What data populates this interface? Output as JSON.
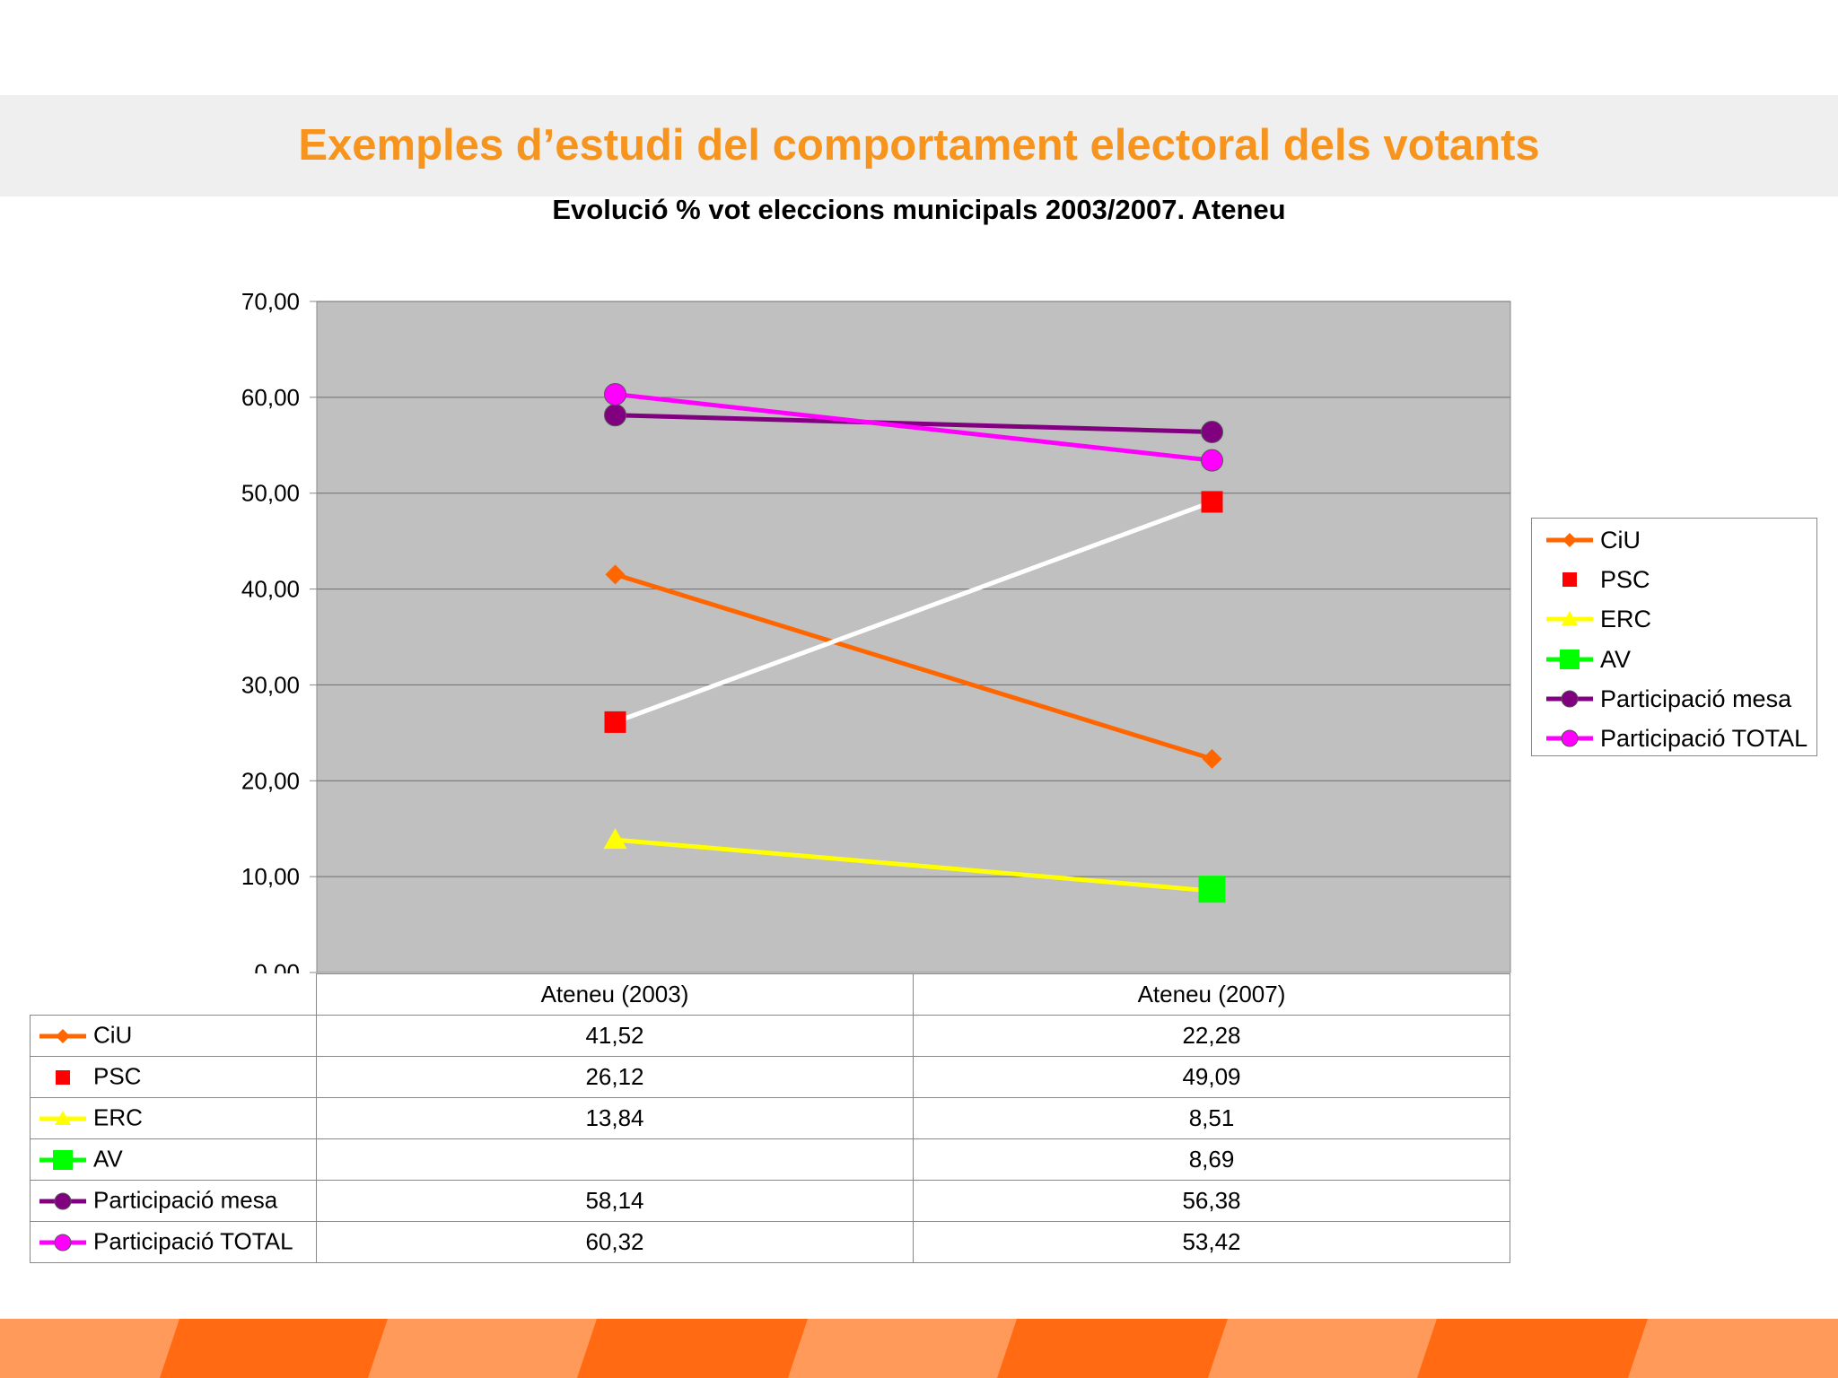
{
  "slide": {
    "title": "Exemples d’estudi del comportament electoral dels votants"
  },
  "chart_data": {
    "type": "line",
    "title": "Evolució % vot eleccions municipals 2003/2007. Ateneu",
    "categories": [
      "Ateneu (2003)",
      "Ateneu (2007)"
    ],
    "ylim": [
      0,
      70
    ],
    "yticks": [
      "0,00",
      "10,00",
      "20,00",
      "30,00",
      "40,00",
      "50,00",
      "60,00",
      "70,00"
    ],
    "grid": true,
    "plot_background": "#c0c0c0",
    "legend_position": "right",
    "series": [
      {
        "name": "CiU",
        "values": [
          41.52,
          22.28
        ],
        "labels": [
          "41,52",
          "22,28"
        ],
        "color": "#ff6600",
        "line_color": "#ff6600",
        "marker": "diamond"
      },
      {
        "name": "PSC",
        "values": [
          26.12,
          49.09
        ],
        "labels": [
          "26,12",
          "49,09"
        ],
        "color": "#ff0000",
        "line_color": "#ffffff",
        "marker": "square"
      },
      {
        "name": "ERC",
        "values": [
          13.84,
          8.51
        ],
        "labels": [
          "13,84",
          "8,51"
        ],
        "color": "#ffff00",
        "line_color": "#ffff00",
        "marker": "triangle"
      },
      {
        "name": "AV",
        "values": [
          null,
          8.69
        ],
        "labels": [
          "",
          "8,69"
        ],
        "color": "#00ff00",
        "line_color": "#00ff00",
        "marker": "square-large"
      },
      {
        "name": "Participació mesa",
        "values": [
          58.14,
          56.38
        ],
        "labels": [
          "58,14",
          "56,38"
        ],
        "color": "#800080",
        "line_color": "#800080",
        "marker": "circle"
      },
      {
        "name": "Participació TOTAL",
        "values": [
          60.32,
          53.42
        ],
        "labels": [
          "60,32",
          "53,42"
        ],
        "color": "#ff00ff",
        "line_color": "#ff00ff",
        "marker": "circle"
      }
    ]
  },
  "colors": {
    "title": "#f7941d",
    "footer_orange": "#ff6a13",
    "footer_light": "#ff9a5a"
  }
}
